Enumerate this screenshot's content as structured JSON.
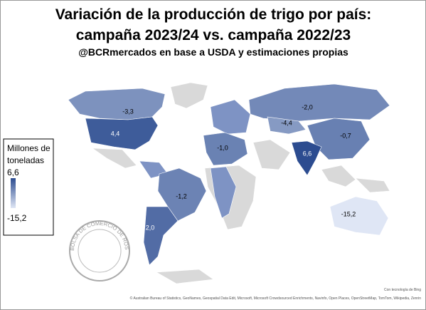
{
  "chart_data": {
    "type": "choropleth",
    "title_lines": [
      "Variación de la producción de trigo por país:",
      "campaña 2023/24 vs. campaña 2022/23"
    ],
    "subtitle": "@BCRmercados en base a USDA y estimaciones propias",
    "legend_title": "Millones de toneladas",
    "colorlim": [
      {
        "value": -15.2,
        "label": "-15,2"
      },
      {
        "value": 6.6,
        "label": "6,6"
      }
    ],
    "colors": [
      "#dfe6f5",
      "#2c4c90"
    ],
    "values": [
      -3.3,
      4.4,
      -1.2,
      2.0,
      -1.0,
      -2.0,
      -4.4,
      -0.7,
      6.6,
      -15.2
    ],
    "value_labels": [
      "-3,3",
      "4,4",
      "-1,2",
      "2,0",
      "-1,0",
      "-2,0",
      "-4,4",
      "-0,7",
      "6,6",
      "-15,2"
    ],
    "seal_text": "BOLSA DE COMERCIO DE ROSARIO",
    "credit": "Con tecnología de Bing",
    "attribution": "© Australian Bureau of Statistics, GeoNames, Geospatial Data Edit, Microsoft, Microsoft Crowdsourced Enrichments, Navinfo, Open Places, OpenStreetMap, TomTom, Wikipedia, Zenrin"
  }
}
